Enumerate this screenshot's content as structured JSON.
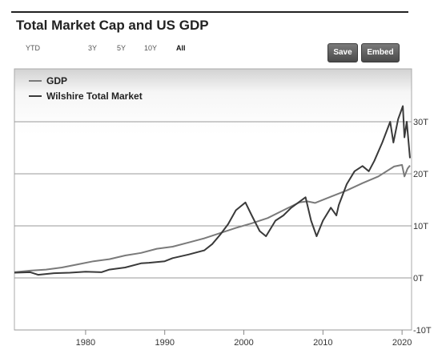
{
  "header": {
    "title": "Total Market Cap and US GDP"
  },
  "range_buttons": [
    {
      "label": "YTD",
      "active": false
    },
    {
      "label": "3Y",
      "active": false
    },
    {
      "label": "5Y",
      "active": false
    },
    {
      "label": "10Y",
      "active": false
    },
    {
      "label": "All",
      "active": true
    }
  ],
  "actions": {
    "save_label": "Save",
    "embed_label": "Embed"
  },
  "chart_data": {
    "type": "line",
    "title": "",
    "xlabel": "",
    "ylabel": "",
    "xlim": [
      1971,
      2021
    ],
    "ylim": [
      -10,
      40
    ],
    "x_ticks": [
      1980,
      1990,
      2000,
      2010,
      2020
    ],
    "y_ticks": [
      -10,
      0,
      10,
      20,
      30
    ],
    "y_tick_labels": [
      "-10T",
      "0T",
      "10T",
      "20T",
      "30T"
    ],
    "grid": true,
    "legend_position": "top-left",
    "series": [
      {
        "name": "GDP",
        "color": "#7a7a7a",
        "points": [
          [
            1971,
            1.1
          ],
          [
            1973,
            1.4
          ],
          [
            1975,
            1.6
          ],
          [
            1977,
            2.0
          ],
          [
            1979,
            2.6
          ],
          [
            1981,
            3.2
          ],
          [
            1983,
            3.6
          ],
          [
            1985,
            4.3
          ],
          [
            1987,
            4.8
          ],
          [
            1989,
            5.6
          ],
          [
            1991,
            6.0
          ],
          [
            1993,
            6.8
          ],
          [
            1995,
            7.6
          ],
          [
            1997,
            8.6
          ],
          [
            1999,
            9.6
          ],
          [
            2001,
            10.5
          ],
          [
            2003,
            11.5
          ],
          [
            2005,
            13.0
          ],
          [
            2007,
            14.5
          ],
          [
            2008,
            14.7
          ],
          [
            2009,
            14.4
          ],
          [
            2011,
            15.6
          ],
          [
            2013,
            16.8
          ],
          [
            2015,
            18.2
          ],
          [
            2017,
            19.5
          ],
          [
            2019,
            21.4
          ],
          [
            2020,
            21.7
          ],
          [
            2020.3,
            19.5
          ],
          [
            2020.7,
            21.0
          ],
          [
            2021,
            21.6
          ]
        ]
      },
      {
        "name": "Wilshire Total Market",
        "color": "#3a3a3a",
        "points": [
          [
            1971,
            1.0
          ],
          [
            1973,
            1.1
          ],
          [
            1974,
            0.6
          ],
          [
            1976,
            0.9
          ],
          [
            1978,
            1.0
          ],
          [
            1980,
            1.2
          ],
          [
            1982,
            1.1
          ],
          [
            1983,
            1.6
          ],
          [
            1985,
            2.0
          ],
          [
            1987,
            2.8
          ],
          [
            1988,
            2.9
          ],
          [
            1990,
            3.2
          ],
          [
            1991,
            3.8
          ],
          [
            1993,
            4.5
          ],
          [
            1995,
            5.3
          ],
          [
            1996,
            6.5
          ],
          [
            1997,
            8.3
          ],
          [
            1998,
            10.3
          ],
          [
            1999,
            13.0
          ],
          [
            2000.2,
            14.5
          ],
          [
            2001,
            12.0
          ],
          [
            2002,
            9.0
          ],
          [
            2002.8,
            8.0
          ],
          [
            2004,
            11.0
          ],
          [
            2005,
            12.0
          ],
          [
            2006,
            13.5
          ],
          [
            2007.8,
            15.5
          ],
          [
            2008.5,
            11.0
          ],
          [
            2009.2,
            8.0
          ],
          [
            2010,
            11.0
          ],
          [
            2011,
            13.5
          ],
          [
            2011.7,
            12.0
          ],
          [
            2012,
            14.0
          ],
          [
            2013,
            18.0
          ],
          [
            2014,
            20.5
          ],
          [
            2015,
            21.5
          ],
          [
            2015.8,
            20.5
          ],
          [
            2016.5,
            22.5
          ],
          [
            2017.5,
            26.0
          ],
          [
            2018.5,
            30.0
          ],
          [
            2018.9,
            26.0
          ],
          [
            2019.5,
            30.5
          ],
          [
            2020.1,
            33.0
          ],
          [
            2020.3,
            27.0
          ],
          [
            2020.6,
            30.0
          ],
          [
            2021,
            23.0
          ]
        ]
      }
    ]
  }
}
